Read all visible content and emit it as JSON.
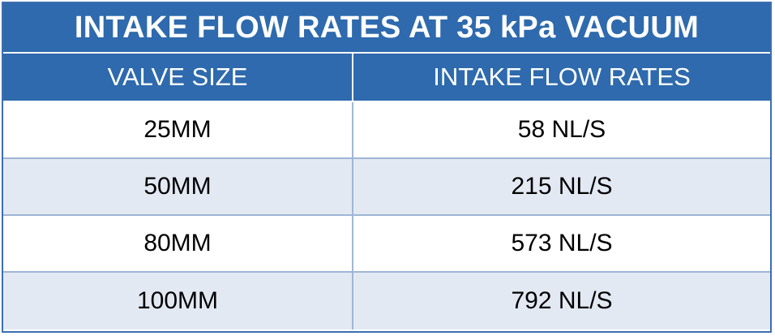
{
  "table": {
    "title": "INTAKE FLOW RATES AT 35 kPa VACUUM",
    "headers": [
      "VALVE SIZE",
      "INTAKE FLOW RATES"
    ],
    "rows": [
      [
        "25MM",
        "58 NL/S"
      ],
      [
        "50MM",
        "215 NL/S"
      ],
      [
        "80MM",
        "573 NL/S"
      ],
      [
        "100MM",
        "792 NL/S"
      ]
    ],
    "colors": {
      "header_bg": "#2e6aad",
      "row_alt_bg": "#e3e9f3",
      "border": "#3b6fb0"
    }
  }
}
